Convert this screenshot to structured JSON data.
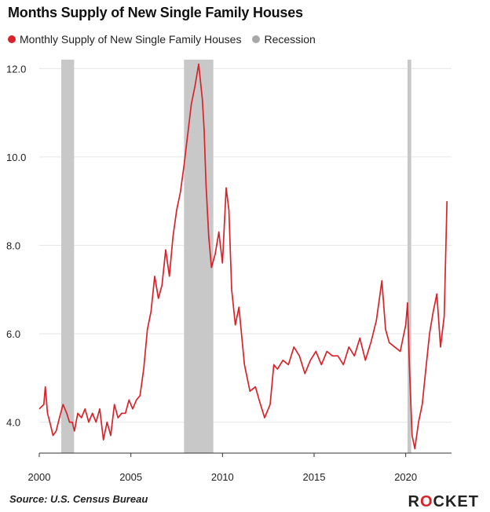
{
  "title": "Months Supply of New Single Family Houses",
  "source": "Source: U.S. Census Bureau",
  "logo": {
    "pre": "R",
    "o": "O",
    "post": "CKET"
  },
  "colors": {
    "series": "#d8232a",
    "recession": "#c8c8c8",
    "recession_dot": "#a8a8a8"
  },
  "chart_data": {
    "type": "line",
    "title": "Months Supply of New Single Family Houses",
    "xlabel": "",
    "ylabel": "",
    "xlim": [
      2000,
      2022.5
    ],
    "ylim": [
      3.3,
      12.2
    ],
    "x_ticks": [
      2000,
      2005,
      2010,
      2015,
      2020
    ],
    "y_ticks": [
      4.0,
      6.0,
      8.0,
      10.0,
      12.0
    ],
    "grid": "horizontal",
    "legend_position": "top-left",
    "legend": [
      "Monthly Supply of New Single Family Houses",
      "Recession"
    ],
    "recessions": [
      [
        2001.2,
        2001.9
      ],
      [
        2007.9,
        2009.5
      ],
      [
        2020.1,
        2020.3
      ]
    ],
    "series": [
      {
        "name": "Monthly Supply of New Single Family Houses",
        "x": [
          2000.0,
          2000.25,
          2000.33,
          2000.45,
          2000.58,
          2000.75,
          2000.92,
          2001.1,
          2001.3,
          2001.5,
          2001.65,
          2001.8,
          2001.92,
          2002.1,
          2002.3,
          2002.5,
          2002.7,
          2002.9,
          2003.1,
          2003.3,
          2003.5,
          2003.7,
          2003.9,
          2004.1,
          2004.3,
          2004.5,
          2004.7,
          2004.9,
          2005.1,
          2005.3,
          2005.5,
          2005.7,
          2005.9,
          2006.1,
          2006.3,
          2006.5,
          2006.7,
          2006.9,
          2007.1,
          2007.3,
          2007.5,
          2007.7,
          2007.9,
          2008.1,
          2008.3,
          2008.5,
          2008.7,
          2008.9,
          2009.0,
          2009.1,
          2009.25,
          2009.4,
          2009.6,
          2009.8,
          2010.0,
          2010.2,
          2010.35,
          2010.5,
          2010.7,
          2010.9,
          2011.2,
          2011.5,
          2011.8,
          2012.0,
          2012.3,
          2012.6,
          2012.8,
          2013.0,
          2013.3,
          2013.6,
          2013.9,
          2014.2,
          2014.5,
          2014.8,
          2015.1,
          2015.4,
          2015.7,
          2016.0,
          2016.3,
          2016.6,
          2016.9,
          2017.2,
          2017.5,
          2017.8,
          2018.1,
          2018.4,
          2018.7,
          2018.9,
          2019.1,
          2019.4,
          2019.7,
          2020.0,
          2020.1,
          2020.2,
          2020.35,
          2020.5,
          2020.7,
          2020.9,
          2021.1,
          2021.3,
          2021.5,
          2021.7,
          2021.9,
          2022.1,
          2022.25
        ],
        "values": [
          4.3,
          4.4,
          4.8,
          4.2,
          4.0,
          3.7,
          3.8,
          4.1,
          4.4,
          4.2,
          4.0,
          4.0,
          3.8,
          4.2,
          4.1,
          4.3,
          4.0,
          4.2,
          4.0,
          4.3,
          3.6,
          4.0,
          3.7,
          4.4,
          4.1,
          4.2,
          4.2,
          4.5,
          4.3,
          4.5,
          4.6,
          5.2,
          6.1,
          6.5,
          7.3,
          6.8,
          7.1,
          7.9,
          7.3,
          8.2,
          8.8,
          9.2,
          9.8,
          10.5,
          11.2,
          11.6,
          12.1,
          11.3,
          10.6,
          9.4,
          8.2,
          7.5,
          7.8,
          8.3,
          7.6,
          9.3,
          8.8,
          7.0,
          6.2,
          6.6,
          5.3,
          4.7,
          4.8,
          4.5,
          4.1,
          4.4,
          5.3,
          5.2,
          5.4,
          5.3,
          5.7,
          5.5,
          5.1,
          5.4,
          5.6,
          5.3,
          5.6,
          5.5,
          5.5,
          5.3,
          5.7,
          5.5,
          5.9,
          5.4,
          5.8,
          6.3,
          7.2,
          6.1,
          5.8,
          5.7,
          5.6,
          6.2,
          6.7,
          5.3,
          3.7,
          3.4,
          4.0,
          4.4,
          5.2,
          6.0,
          6.5,
          6.9,
          5.7,
          6.4,
          9.0
        ]
      }
    ]
  }
}
